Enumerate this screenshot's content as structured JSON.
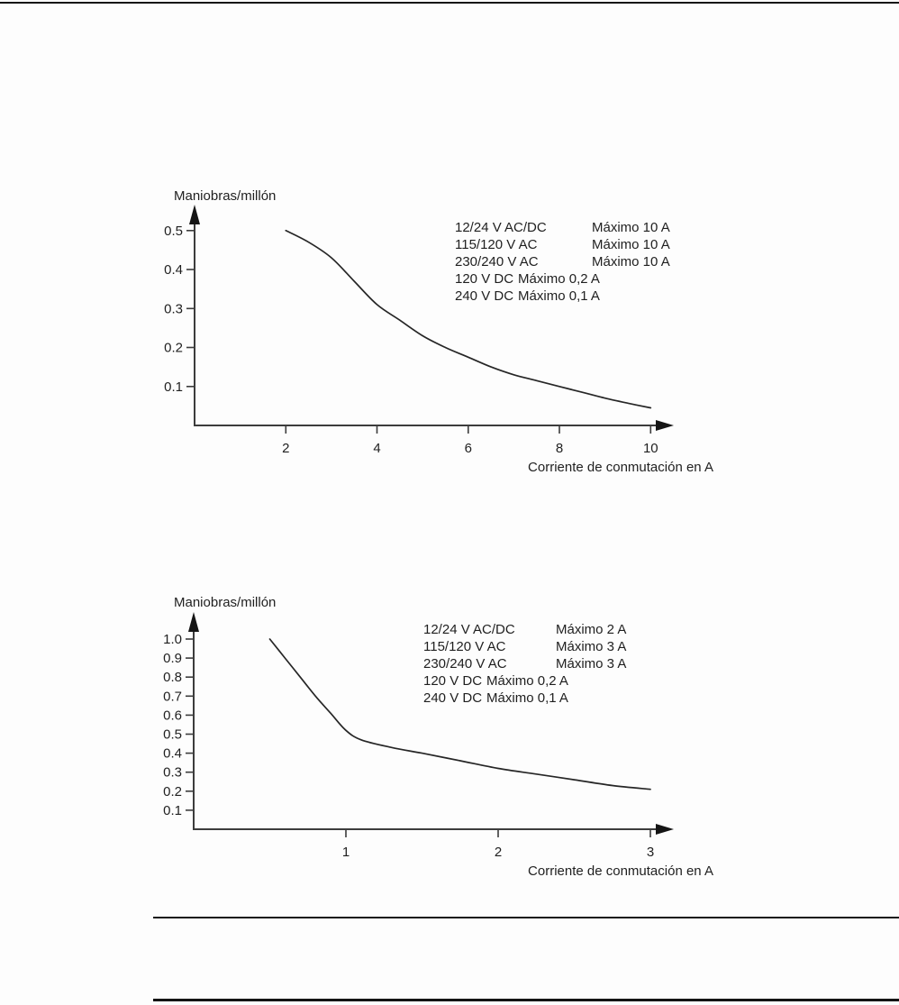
{
  "colors": {
    "page_background": "#fdfdfd",
    "ink": "#1f1f1f",
    "axis": "#3c3c3c",
    "curve": "#262626"
  },
  "chart_data": [
    {
      "type": "line",
      "title": "Maniobras/millón",
      "xlabel": "Corriente de conmutación en A",
      "ylabel": "Maniobras/millón",
      "grid": false,
      "legend_position": "upper-right",
      "x_range": [
        0,
        10.5
      ],
      "y_range": [
        0,
        0.55
      ],
      "x_tick_values": [
        2,
        4,
        6,
        8,
        10
      ],
      "x_tick_labels": [
        "2",
        "4",
        "6",
        "8",
        "10"
      ],
      "y_tick_values": [
        0.1,
        0.2,
        0.3,
        0.4,
        0.5
      ],
      "y_tick_labels": [
        "0.1",
        "0.2",
        "0.3",
        "0.4",
        "0.5"
      ],
      "annotations": [
        {
          "voltage": "12/24 V AC/DC",
          "max": "Máximo 10 A"
        },
        {
          "voltage": "115/120 V AC",
          "max": "Máximo 10 A"
        },
        {
          "voltage": "230/240 V AC",
          "max": "Máximo 10 A"
        },
        {
          "voltage": "120 V DC",
          "max": "Máximo 0,2 A"
        },
        {
          "voltage": "240 V DC",
          "max": "Máximo 0,1 A"
        }
      ],
      "series": [
        {
          "x": [
            2,
            2.5,
            3,
            3.5,
            4,
            4.5,
            5,
            5.5,
            6,
            6.5,
            7,
            7.5,
            8,
            8.5,
            9,
            9.5,
            10
          ],
          "y": [
            0.5,
            0.47,
            0.43,
            0.37,
            0.31,
            0.27,
            0.23,
            0.2,
            0.175,
            0.15,
            0.13,
            0.115,
            0.1,
            0.085,
            0.07,
            0.057,
            0.045
          ]
        }
      ]
    },
    {
      "type": "line",
      "title": "Maniobras/millón",
      "xlabel": "Corriente de conmutación en A",
      "ylabel": "Maniobras/millón",
      "grid": false,
      "legend_position": "upper-right",
      "x_range": [
        0,
        3.2
      ],
      "y_range": [
        0,
        1.1
      ],
      "x_tick_values": [
        1,
        2,
        3
      ],
      "x_tick_labels": [
        "1",
        "2",
        "3"
      ],
      "y_tick_values": [
        0.1,
        0.2,
        0.3,
        0.4,
        0.5,
        0.6,
        0.7,
        0.8,
        0.9,
        1.0
      ],
      "y_tick_labels": [
        "0.1",
        "0.2",
        "0.3",
        "0.4",
        "0.5",
        "0.6",
        "0.7",
        "0.8",
        "0.9",
        "1.0"
      ],
      "annotations": [
        {
          "voltage": "12/24 V AC/DC",
          "max": "Máximo 2 A"
        },
        {
          "voltage": "115/120 V AC",
          "max": "Máximo 3 A"
        },
        {
          "voltage": "230/240 V AC",
          "max": "Máximo 3 A"
        },
        {
          "voltage": "120 V DC",
          "max": "Máximo 0,2 A"
        },
        {
          "voltage": "240 V DC",
          "max": "Máximo 0,1 A"
        }
      ],
      "series": [
        {
          "x": [
            0.5,
            0.6,
            0.7,
            0.8,
            0.9,
            1.0,
            1.1,
            1.3,
            1.5,
            1.75,
            2.0,
            2.25,
            2.5,
            2.75,
            3.0
          ],
          "y": [
            1.0,
            0.9,
            0.8,
            0.7,
            0.61,
            0.52,
            0.47,
            0.43,
            0.4,
            0.36,
            0.32,
            0.29,
            0.26,
            0.23,
            0.21
          ]
        }
      ]
    }
  ]
}
